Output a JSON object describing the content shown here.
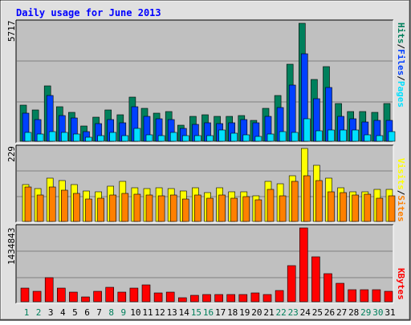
{
  "title": "Daily usage for June 2013",
  "colors": {
    "background": "#c0c0c0",
    "outer": "#e0e0e0",
    "title": "#0000ff",
    "hits": "#00805c",
    "files": "#0040ff",
    "pages": "#00e0ff",
    "visits": "#ffff00",
    "sites": "#ff8000",
    "kbytes": "#ff0000",
    "weekend_day": "#00805c",
    "weekday": "#000000"
  },
  "right_labels": {
    "top": [
      "Pages",
      "/",
      "Files",
      "/",
      "Hits"
    ],
    "middle": [
      "Sites",
      "/",
      "Visits"
    ],
    "bottom": [
      "KBytes"
    ]
  },
  "chart_data": [
    {
      "type": "bar",
      "panel": "top",
      "ymax_label": "5717",
      "ylim": [
        0,
        5717
      ],
      "categories": [
        "1",
        "2",
        "3",
        "4",
        "5",
        "6",
        "7",
        "8",
        "9",
        "10",
        "11",
        "12",
        "13",
        "14",
        "15",
        "16",
        "17",
        "18",
        "19",
        "20",
        "21",
        "22",
        "23",
        "24",
        "25",
        "26",
        "27",
        "28",
        "29",
        "30",
        "31"
      ],
      "weekend_days": [
        "1",
        "2",
        "8",
        "9",
        "15",
        "16",
        "22",
        "23",
        "29",
        "30"
      ],
      "series": [
        {
          "name": "Hits",
          "values": [
            1750,
            1530,
            2680,
            1670,
            1400,
            720,
            1180,
            1520,
            1280,
            2120,
            1590,
            1380,
            1420,
            780,
            1190,
            1270,
            1190,
            1220,
            1240,
            1020,
            1590,
            2200,
            3750,
            5717,
            2990,
            3600,
            1830,
            1420,
            1430,
            1400,
            1830
          ]
        },
        {
          "name": "Files",
          "values": [
            1360,
            1060,
            2210,
            1230,
            1120,
            450,
            860,
            1040,
            910,
            1680,
            1190,
            1090,
            1060,
            620,
            820,
            880,
            870,
            890,
            1050,
            880,
            1200,
            1640,
            2740,
            4240,
            2050,
            2620,
            1200,
            1100,
            920,
            1010,
            1000
          ]
        },
        {
          "name": "Pages",
          "values": [
            410,
            350,
            470,
            410,
            350,
            200,
            290,
            420,
            280,
            620,
            310,
            260,
            420,
            270,
            260,
            260,
            530,
            400,
            300,
            230,
            360,
            470,
            420,
            1070,
            520,
            560,
            530,
            550,
            330,
            290,
            480
          ]
        }
      ]
    },
    {
      "type": "bar",
      "panel": "middle",
      "ymax_label": "229",
      "ylim": [
        0,
        229
      ],
      "categories": [
        "1",
        "2",
        "3",
        "4",
        "5",
        "6",
        "7",
        "8",
        "9",
        "10",
        "11",
        "12",
        "13",
        "14",
        "15",
        "16",
        "17",
        "18",
        "19",
        "20",
        "21",
        "22",
        "23",
        "24",
        "25",
        "26",
        "27",
        "28",
        "29",
        "30",
        "31"
      ],
      "series": [
        {
          "name": "Visits",
          "values": [
            117,
            104,
            135,
            129,
            117,
            95,
            93,
            110,
            127,
            105,
            104,
            106,
            104,
            95,
            106,
            91,
            105,
            93,
            92,
            81,
            125,
            119,
            143,
            229,
            175,
            135,
            106,
            93,
            93,
            101,
            101
          ]
        },
        {
          "name": "Sites",
          "values": [
            107,
            83,
            109,
            99,
            87,
            71,
            74,
            84,
            87,
            86,
            84,
            80,
            82,
            71,
            82,
            73,
            84,
            72,
            79,
            69,
            100,
            80,
            126,
            143,
            129,
            92,
            90,
            82,
            86,
            72,
            80
          ]
        }
      ]
    },
    {
      "type": "bar",
      "panel": "bottom",
      "ymax_label": "1434843",
      "ylim": [
        0,
        1434843
      ],
      "categories": [
        "1",
        "2",
        "3",
        "4",
        "5",
        "6",
        "7",
        "8",
        "9",
        "10",
        "11",
        "12",
        "13",
        "14",
        "15",
        "16",
        "17",
        "18",
        "19",
        "20",
        "21",
        "22",
        "23",
        "24",
        "25",
        "26",
        "27",
        "28",
        "29",
        "30",
        "31"
      ],
      "series": [
        {
          "name": "KBytes",
          "values": [
            265000,
            205000,
            470000,
            270000,
            180000,
            100000,
            200000,
            280000,
            185000,
            265000,
            320000,
            170000,
            185000,
            80000,
            120000,
            148000,
            148000,
            138000,
            140000,
            178000,
            148000,
            215000,
            700000,
            1434843,
            870000,
            550000,
            365000,
            240000,
            240000,
            240000,
            205000
          ]
        }
      ]
    }
  ]
}
